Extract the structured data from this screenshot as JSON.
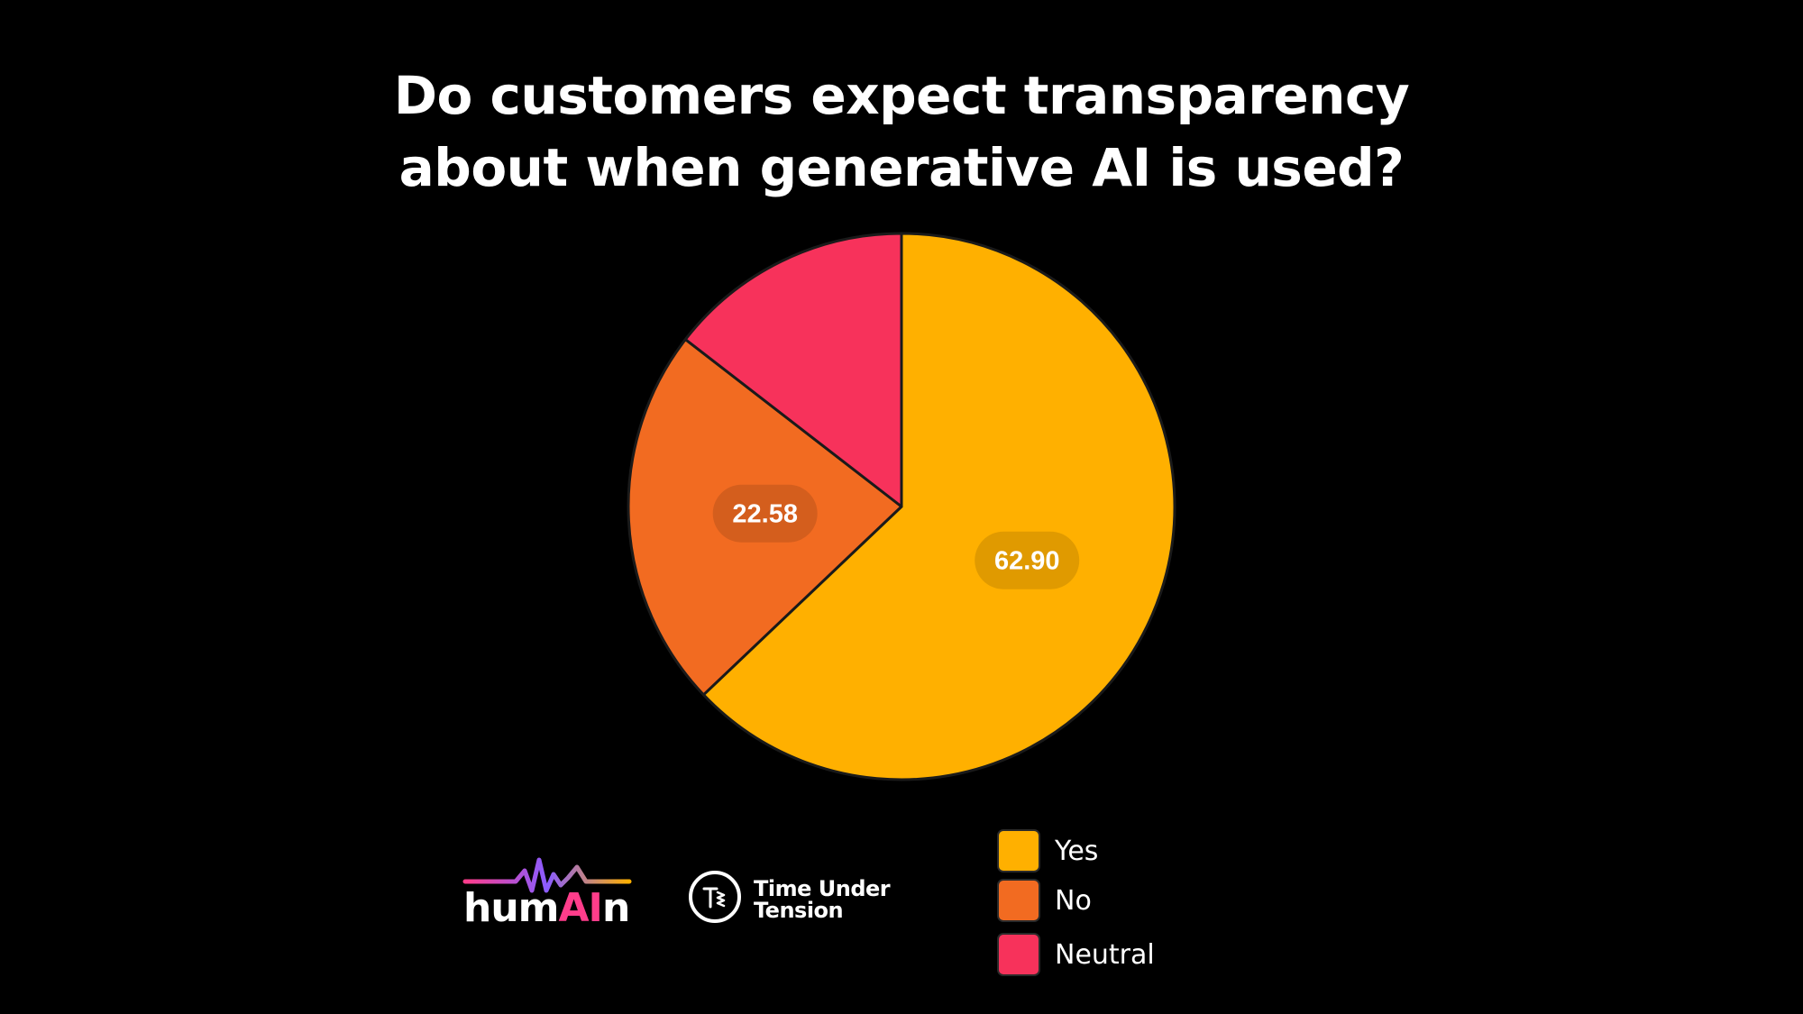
{
  "chart_data": {
    "type": "pie",
    "title_lines": [
      "Do customers expect transparency",
      "about when generative AI is used?"
    ],
    "slices": [
      {
        "name": "Yes",
        "value": 62.9,
        "label": "62.90",
        "color": "#FFB000"
      },
      {
        "name": "No",
        "value": 22.58,
        "label": "22.58",
        "color": "#F26B21"
      },
      {
        "name": "Neutral",
        "value": 14.52,
        "label": "",
        "color": "#F7325B"
      }
    ],
    "legend": {
      "placement": "bottom-right",
      "entries": [
        "Yes",
        "No",
        "Neutral"
      ]
    }
  },
  "logos": {
    "humain": {
      "prefix": "hum",
      "highlight": "AI",
      "suffix": "n"
    },
    "tut": {
      "line1": "Time Under",
      "line2": "Tension"
    }
  },
  "colors": {
    "background": "#000000",
    "slice_border": "#1a1a1a",
    "text": "#FFFFFF"
  }
}
